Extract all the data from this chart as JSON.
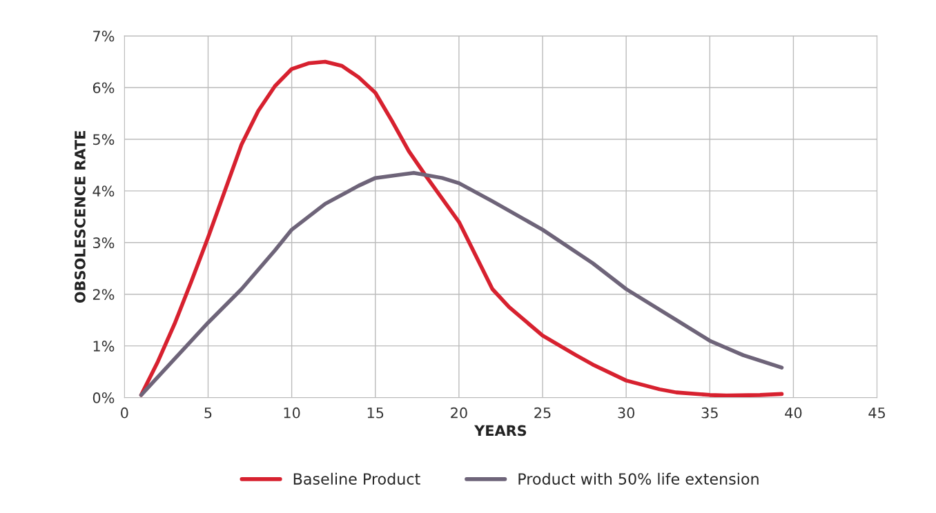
{
  "chart_data": {
    "type": "line",
    "xlabel": "YEARS",
    "ylabel": "OBSOLESCENCE RATE",
    "xlim": [
      0,
      45
    ],
    "xticks": [
      0,
      5,
      10,
      15,
      20,
      25,
      30,
      35,
      40,
      45
    ],
    "ylim": [
      0,
      7
    ],
    "yticks": [
      {
        "value": 0,
        "label": "0%"
      },
      {
        "value": 1,
        "label": "1%"
      },
      {
        "value": 2,
        "label": "2%"
      },
      {
        "value": 3,
        "label": "3%"
      },
      {
        "value": 4,
        "label": "4%"
      },
      {
        "value": 5,
        "label": "5%"
      },
      {
        "value": 6,
        "label": "6%"
      },
      {
        "value": 7,
        "label": "7%"
      }
    ],
    "grid": true,
    "legend": "bottom",
    "line_style": "solid",
    "series": [
      {
        "name": "Baseline Product",
        "color": "#d7212f",
        "x": [
          1,
          2,
          3,
          4,
          5,
          6,
          7,
          8,
          9,
          10,
          11,
          12,
          13,
          14,
          15,
          16,
          17,
          18,
          19,
          20,
          21,
          22,
          23,
          25,
          27,
          28,
          30,
          32,
          33,
          35,
          36,
          38,
          39.3
        ],
        "values": [
          0.05,
          0.7,
          1.43,
          2.25,
          3.1,
          4.0,
          4.9,
          5.55,
          6.03,
          6.36,
          6.47,
          6.5,
          6.42,
          6.2,
          5.9,
          5.35,
          4.77,
          4.3,
          3.85,
          3.4,
          2.75,
          2.1,
          1.75,
          1.2,
          0.82,
          0.64,
          0.33,
          0.16,
          0.1,
          0.05,
          0.04,
          0.05,
          0.07
        ]
      },
      {
        "name": "Product with 50% life extension",
        "color": "#6e6479",
        "x": [
          1,
          3,
          5,
          7,
          9,
          10,
          12,
          14,
          15,
          17.3,
          19,
          20,
          22,
          25,
          28,
          30,
          33,
          35,
          37,
          39.3
        ],
        "values": [
          0.05,
          0.75,
          1.45,
          2.1,
          2.85,
          3.25,
          3.75,
          4.1,
          4.25,
          4.35,
          4.25,
          4.15,
          3.8,
          3.25,
          2.6,
          2.1,
          1.5,
          1.1,
          0.82,
          0.58
        ]
      }
    ]
  }
}
